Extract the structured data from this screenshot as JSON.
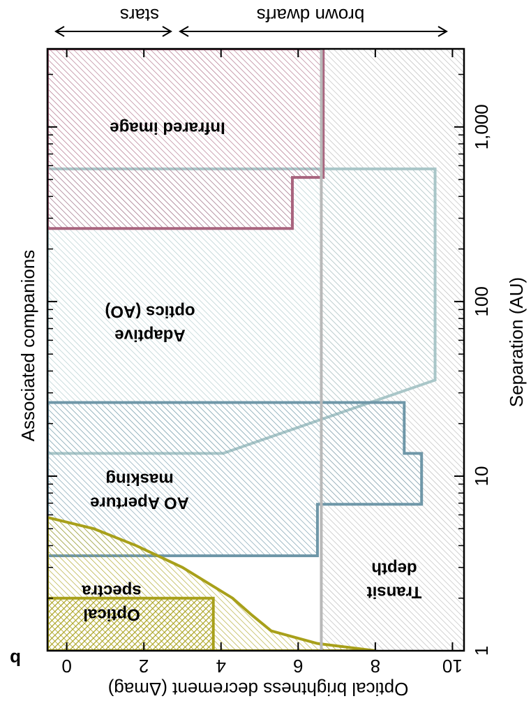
{
  "chart_data": {
    "type": "region",
    "panel": "b",
    "value_label": "Optical brightness decrement (Δmag)",
    "sep_label": "Separation (AU)",
    "side_label": "Associated companions",
    "arrows": [
      "stars",
      "brown dwarfs"
    ],
    "maglim": [
      -0.5,
      10.3
    ],
    "magticks": [
      0,
      2,
      4,
      6,
      8,
      10
    ],
    "seplim": [
      1,
      2800
    ],
    "log_sep": true,
    "septicks": [
      1,
      10,
      100,
      {
        "value": 1000,
        "label": "1,000"
      }
    ],
    "sepminorticks": [
      2,
      3,
      4,
      5,
      6,
      7,
      8,
      9,
      20,
      30,
      40,
      50,
      60,
      70,
      80,
      90,
      200,
      300,
      400,
      500,
      600,
      700,
      800,
      900,
      2000
    ],
    "regions": [
      {
        "label": [
          "Transit",
          "depth"
        ],
        "color": "#b4b4b4",
        "outline": false,
        "polygon": [
          [
            1,
            6.6
          ],
          [
            2800,
            6.6
          ],
          [
            2800,
            10.3
          ],
          [
            1,
            10.3
          ]
        ]
      },
      {
        "label": [
          "Adaptive",
          "optics (AO)"
        ],
        "color": "#a9c6c8",
        "outline": true,
        "polygon": [
          [
            13.5,
            -0.5
          ],
          [
            13.5,
            4.05
          ],
          [
            35.5,
            9.55
          ],
          [
            575,
            9.55
          ],
          [
            575,
            -0.5
          ]
        ]
      },
      {
        "label": [
          "AO Aperture",
          "masking"
        ],
        "color": "#6f97a8",
        "outline": true,
        "polygon": [
          [
            3.5,
            -0.5
          ],
          [
            3.5,
            6.5
          ],
          [
            6.9,
            6.5
          ],
          [
            6.9,
            9.2
          ],
          [
            13.5,
            9.2
          ],
          [
            13.5,
            8.75
          ],
          [
            26.4,
            8.75
          ],
          [
            26.4,
            -0.5
          ]
        ]
      },
      {
        "label": [
          "Infrared image"
        ],
        "color": "#a8647e",
        "outline": true,
        "polygon": [
          [
            262,
            -0.5
          ],
          [
            262,
            5.85
          ],
          [
            514,
            5.85
          ],
          [
            514,
            6.65
          ],
          [
            2800,
            6.65
          ],
          [
            2800,
            -0.5
          ]
        ]
      },
      {
        "label": [
          "Optical",
          "spectra"
        ],
        "color": "#a8a01a",
        "outline": true,
        "polygon": [
          [
            1,
            -0.5
          ],
          [
            1,
            3.8
          ],
          [
            2,
            3.8
          ],
          [
            2,
            -0.5
          ]
        ]
      },
      {
        "color": "#a8a01a",
        "outline": true,
        "polygon": [
          [
            1,
            8
          ],
          [
            1.1,
            6.5
          ],
          [
            1.3,
            5.3
          ],
          [
            1.6,
            4.8
          ],
          [
            2,
            4.3
          ],
          [
            3,
            3
          ],
          [
            4,
            1.8
          ],
          [
            5,
            0.7
          ],
          [
            5.8,
            -0.5
          ],
          [
            1,
            -0.5
          ]
        ]
      }
    ],
    "transit_line": 6.6
  }
}
